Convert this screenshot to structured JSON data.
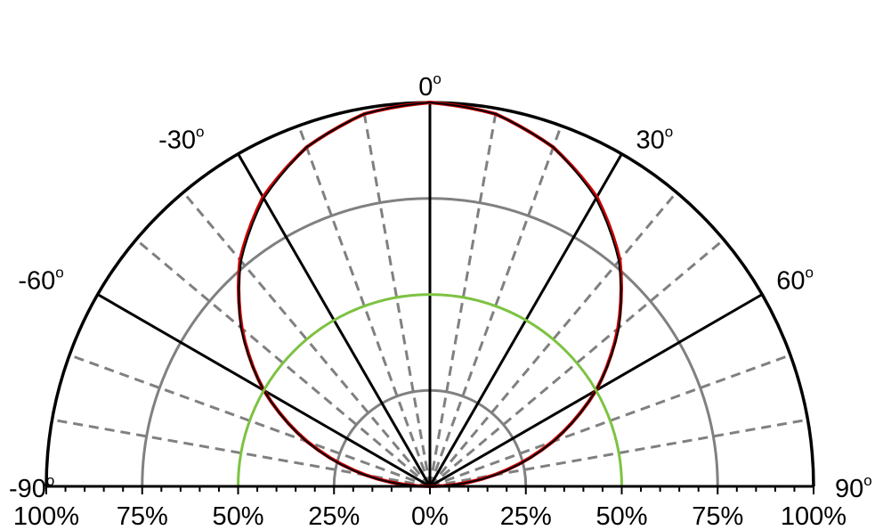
{
  "chart_data": {
    "type": "polar",
    "angular_range_deg": [
      -90,
      90
    ],
    "radial_range_percent": [
      0,
      100
    ],
    "angle_labels": [
      {
        "deg": -90,
        "text": "-90",
        "unit": "o"
      },
      {
        "deg": -60,
        "text": "-60",
        "unit": "o"
      },
      {
        "deg": -30,
        "text": "-30",
        "unit": "o"
      },
      {
        "deg": 0,
        "text": "0",
        "unit": "o"
      },
      {
        "deg": 30,
        "text": "30",
        "unit": "o"
      },
      {
        "deg": 60,
        "text": "60",
        "unit": "o"
      },
      {
        "deg": 90,
        "text": "90",
        "unit": "o"
      }
    ],
    "radial_tick_labels": [
      {
        "value": -100,
        "text": "100%"
      },
      {
        "value": -75,
        "text": "75%"
      },
      {
        "value": -50,
        "text": "50%"
      },
      {
        "value": -25,
        "text": "25%"
      },
      {
        "value": 0,
        "text": "0%"
      },
      {
        "value": 25,
        "text": "25%"
      },
      {
        "value": 50,
        "text": "50%"
      },
      {
        "value": 75,
        "text": "75%"
      },
      {
        "value": 100,
        "text": "100%"
      }
    ],
    "grid": {
      "solid_spokes_deg": [
        -90,
        -60,
        -30,
        0,
        30,
        60,
        90
      ],
      "dashed_spokes_deg": [
        -80,
        -70,
        -50,
        -40,
        -20,
        -10,
        10,
        20,
        40,
        50,
        70,
        80
      ],
      "circles_percent": [
        25,
        75,
        100
      ],
      "colors": {
        "outer": "#000000",
        "inner": "#808080",
        "dashed": "#808080"
      }
    },
    "series": [
      {
        "color": "#cc0000",
        "style": "solid",
        "points": [
          {
            "angle": -90,
            "r": 0
          },
          {
            "angle": -80,
            "r": 17
          },
          {
            "angle": -70,
            "r": 34
          },
          {
            "angle": -60,
            "r": 50
          },
          {
            "angle": -50,
            "r": 64
          },
          {
            "angle": -40,
            "r": 77
          },
          {
            "angle": -30,
            "r": 87
          },
          {
            "angle": -20,
            "r": 94
          },
          {
            "angle": -10,
            "r": 98.5
          },
          {
            "angle": 0,
            "r": 100
          },
          {
            "angle": 10,
            "r": 98.5
          },
          {
            "angle": 20,
            "r": 94
          },
          {
            "angle": 30,
            "r": 87
          },
          {
            "angle": 40,
            "r": 77
          },
          {
            "angle": 50,
            "r": 64
          },
          {
            "angle": 60,
            "r": 50
          },
          {
            "angle": 70,
            "r": 34
          },
          {
            "angle": 80,
            "r": 17
          },
          {
            "angle": 90,
            "r": 0
          }
        ]
      },
      {
        "color": "#000000",
        "style": "solid",
        "points": [
          {
            "angle": -90,
            "r": 0
          },
          {
            "angle": -80,
            "r": 17.4
          },
          {
            "angle": -70,
            "r": 34.2
          },
          {
            "angle": -60,
            "r": 50
          },
          {
            "angle": -50,
            "r": 64.3
          },
          {
            "angle": -40,
            "r": 76.6
          },
          {
            "angle": -30,
            "r": 86.6
          },
          {
            "angle": -20,
            "r": 94
          },
          {
            "angle": -10,
            "r": 98.5
          },
          {
            "angle": 0,
            "r": 100
          },
          {
            "angle": 10,
            "r": 98.5
          },
          {
            "angle": 20,
            "r": 94
          },
          {
            "angle": 30,
            "r": 86.6
          },
          {
            "angle": 40,
            "r": 76.6
          },
          {
            "angle": 50,
            "r": 64.3
          },
          {
            "angle": 60,
            "r": 50
          },
          {
            "angle": 70,
            "r": 34.2
          },
          {
            "angle": 80,
            "r": 17.4
          },
          {
            "angle": 90,
            "r": 0
          }
        ]
      },
      {
        "color": "#7dc242",
        "style": "solid",
        "shape": "circle",
        "radius_percent": 50
      }
    ]
  }
}
